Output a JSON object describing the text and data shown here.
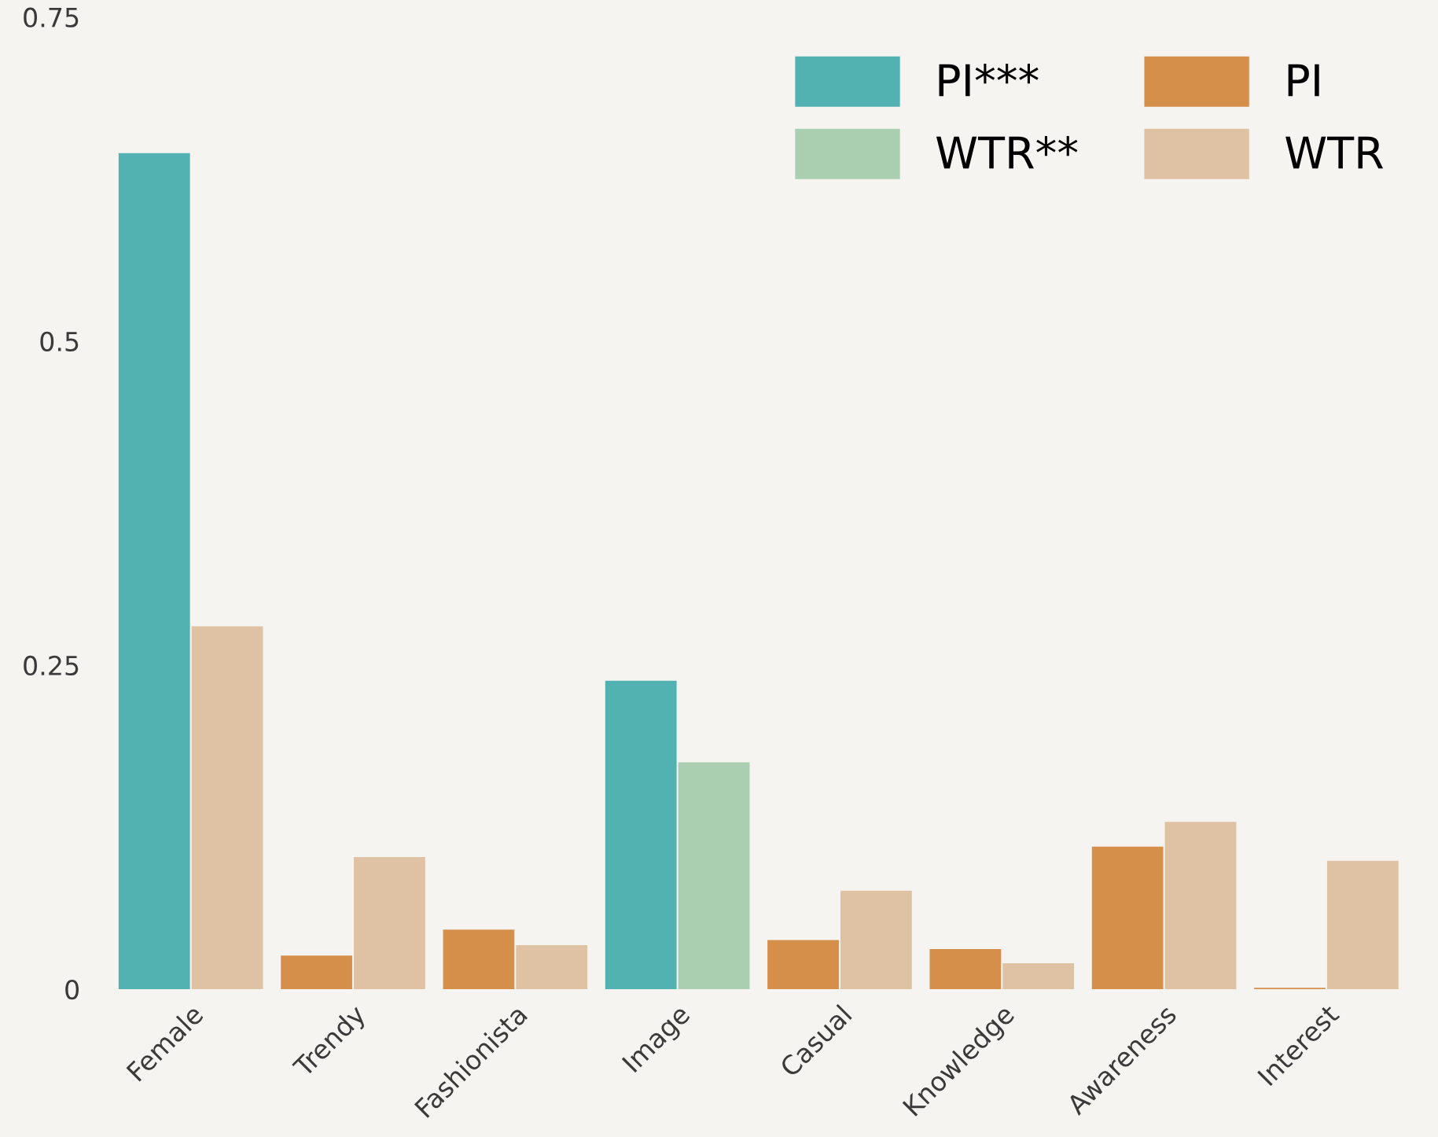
{
  "chart_data": {
    "type": "bar",
    "categories": [
      "Female",
      "Trendy",
      "Fashionista",
      "Image",
      "Casual",
      "Knowledge",
      "Awareness",
      "Interest"
    ],
    "series": [
      {
        "name": "PI***",
        "color": "#52b2b1",
        "values": [
          0.645,
          null,
          null,
          0.238,
          null,
          null,
          null,
          null
        ]
      },
      {
        "name": "WTR**",
        "color": "#a9cfb0",
        "values": [
          null,
          null,
          null,
          0.175,
          null,
          null,
          null,
          null
        ]
      },
      {
        "name": "PI",
        "color": "#d58f4a",
        "values": [
          null,
          0.026,
          0.046,
          null,
          0.038,
          0.031,
          0.11,
          0.001
        ]
      },
      {
        "name": "WTR",
        "color": "#dfc1a3",
        "values": [
          0.28,
          0.102,
          0.034,
          null,
          0.076,
          0.02,
          0.129,
          0.099
        ]
      }
    ],
    "ylim": [
      0,
      0.75
    ],
    "yticks": [
      0,
      0.25,
      0.5,
      0.75
    ],
    "grid": false,
    "legend": "top right"
  }
}
